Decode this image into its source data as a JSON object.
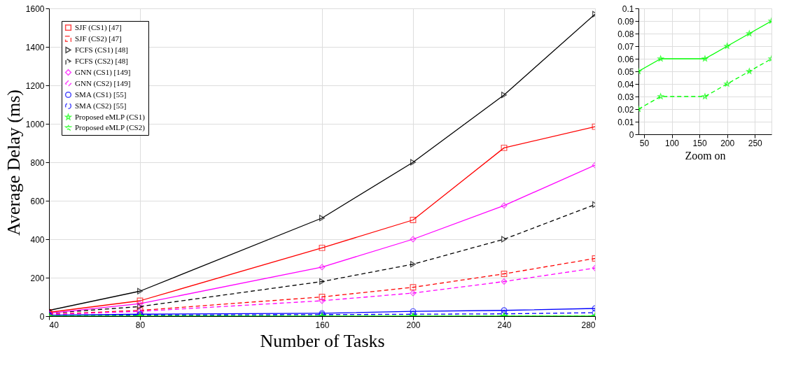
{
  "chart_data": [
    {
      "type": "line",
      "xlabel": "Number of Tasks",
      "ylabel": "Average Delay (ms)",
      "x": [
        40,
        80,
        160,
        200,
        240,
        280
      ],
      "xlim": [
        40,
        280
      ],
      "xticks": [
        40,
        80,
        160,
        200,
        240,
        280
      ],
      "ylim": [
        0,
        1600
      ],
      "yticks": [
        0,
        200,
        400,
        600,
        800,
        1000,
        1200,
        1400,
        1600
      ],
      "grid": true,
      "legend": "top left",
      "series": [
        {
          "name": "SJF (CS1) [47]",
          "color": "#ff0000",
          "marker": "square",
          "line_style": "solid",
          "values": [
            20,
            80,
            355,
            500,
            875,
            985
          ]
        },
        {
          "name": "SJF (CS2) [47]",
          "color": "#ff0000",
          "marker": "square",
          "line_style": "dashed",
          "values": [
            10,
            30,
            100,
            150,
            220,
            300
          ]
        },
        {
          "name": "FCFS (CS1) [48]",
          "color": "#000000",
          "marker": "triangle",
          "line_style": "solid",
          "values": [
            30,
            130,
            510,
            800,
            1150,
            1570
          ]
        },
        {
          "name": "FCFS (CS2) [48]",
          "color": "#000000",
          "marker": "triangle",
          "line_style": "dashed",
          "values": [
            15,
            50,
            180,
            270,
            400,
            580
          ]
        },
        {
          "name": "GNN (CS1) [149]",
          "color": "#ff00ff",
          "marker": "diamond",
          "line_style": "solid",
          "values": [
            15,
            65,
            255,
            400,
            575,
            785
          ]
        },
        {
          "name": "GNN (CS2) [149]",
          "color": "#ff00ff",
          "marker": "diamond",
          "line_style": "dashed",
          "values": [
            8,
            25,
            80,
            120,
            180,
            250
          ]
        },
        {
          "name": "SMA (CS1) [55]",
          "color": "#0000ff",
          "marker": "circle",
          "line_style": "solid",
          "values": [
            5,
            10,
            15,
            25,
            30,
            40
          ]
        },
        {
          "name": "SMA (CS2) [55]",
          "color": "#0000ff",
          "marker": "circle",
          "line_style": "dashed",
          "values": [
            3,
            5,
            8,
            10,
            12,
            18
          ]
        },
        {
          "name": "Proposed eMLP (CS1)",
          "color": "#00ff00",
          "marker": "star",
          "line_style": "solid",
          "values": [
            0,
            0,
            0,
            0,
            0,
            0
          ]
        },
        {
          "name": "Proposed eMLP (CS2)",
          "color": "#00ff00",
          "marker": "star",
          "line_style": "dashed",
          "values": [
            0,
            0,
            0,
            0,
            0,
            0
          ]
        }
      ]
    },
    {
      "type": "line",
      "xlabel": "Zoom on",
      "x": [
        40,
        80,
        160,
        200,
        240,
        280
      ],
      "xlim": [
        40,
        280
      ],
      "xticks": [
        50,
        100,
        150,
        200,
        250
      ],
      "ylim": [
        0,
        0.1
      ],
      "yticks": [
        0,
        0.01,
        0.02,
        0.03,
        0.04,
        0.05,
        0.06,
        0.07,
        0.08,
        0.09,
        0.1
      ],
      "grid": true,
      "series": [
        {
          "color": "#00ff00",
          "marker": "star",
          "line_style": "solid",
          "values": [
            0.05,
            0.06,
            0.06,
            0.07,
            0.08,
            0.09
          ]
        },
        {
          "color": "#00ff00",
          "marker": "star",
          "line_style": "dashed",
          "values": [
            0.02,
            0.03,
            0.03,
            0.04,
            0.05,
            0.06
          ]
        }
      ]
    }
  ]
}
